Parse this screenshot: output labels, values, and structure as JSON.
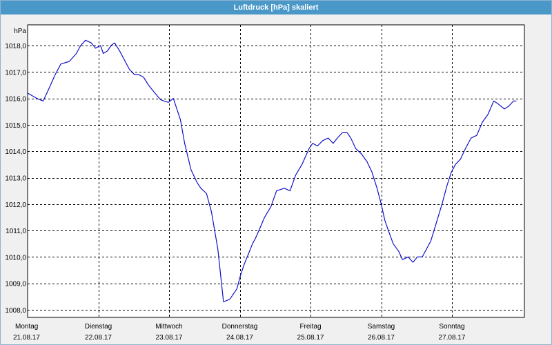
{
  "window": {
    "title": "Luftdruck [hPa] skaliert"
  },
  "chart_data": {
    "type": "line",
    "title": "Luftdruck [hPa] skaliert",
    "ylabel": "hPa",
    "xlabel": "",
    "ylim": [
      1007.8,
      1018.6
    ],
    "xlim": [
      0,
      7
    ],
    "grid": true,
    "line_color": "#1010c8",
    "grid_color": "#000000",
    "background": "#ffffff",
    "yticks": [
      {
        "value": 1008.0,
        "label": "1008,0"
      },
      {
        "value": 1009.0,
        "label": "1009,0"
      },
      {
        "value": 1010.0,
        "label": "1010,0"
      },
      {
        "value": 1011.0,
        "label": "1011,0"
      },
      {
        "value": 1012.0,
        "label": "1012,0"
      },
      {
        "value": 1013.0,
        "label": "1013,0"
      },
      {
        "value": 1014.0,
        "label": "1014,0"
      },
      {
        "value": 1015.0,
        "label": "1015,0"
      },
      {
        "value": 1016.0,
        "label": "1016,0"
      },
      {
        "value": 1017.0,
        "label": "1017,0"
      },
      {
        "value": 1018.0,
        "label": "1018,0"
      }
    ],
    "xticks": [
      {
        "value": 0,
        "day": "Montag",
        "date": "21.08.17"
      },
      {
        "value": 1,
        "day": "Dienstag",
        "date": "22.08.17"
      },
      {
        "value": 2,
        "day": "Mittwoch",
        "date": "23.08.17"
      },
      {
        "value": 3,
        "day": "Donnerstag",
        "date": "24.08.17"
      },
      {
        "value": 4,
        "day": "Freitag",
        "date": "25.08.17"
      },
      {
        "value": 5,
        "day": "Samstag",
        "date": "26.08.17"
      },
      {
        "value": 6,
        "day": "Sonntag",
        "date": "27.08.17"
      }
    ],
    "series": [
      {
        "x": [
          0,
          0.13,
          0.22,
          0.29,
          0.39,
          0.47,
          0.59,
          0.69,
          0.75,
          0.82,
          0.9,
          0.96,
          1.03,
          1.07,
          1.13,
          1.18,
          1.23,
          1.3,
          1.38,
          1.44,
          1.51,
          1.57,
          1.64,
          1.71,
          1.8,
          1.88,
          1.93,
          1.99,
          2.06,
          2.16,
          2.22,
          2.31,
          2.4,
          2.45,
          2.53,
          2.6,
          2.69,
          2.77,
          2.86,
          2.96,
          3.01,
          3.06,
          3.12,
          3.18,
          3.22,
          3.27,
          3.35,
          3.44,
          3.52,
          3.63,
          3.71,
          3.79,
          3.88,
          3.98,
          4.03,
          4.1,
          4.17,
          4.25,
          4.32,
          4.38,
          4.45,
          4.52,
          4.57,
          4.64,
          4.72,
          4.8,
          4.87,
          4.94,
          5.0,
          5.05,
          5.1,
          5.17,
          5.25,
          5.3,
          5.38,
          5.45,
          5.51,
          5.58,
          5.64,
          5.7,
          5.78,
          5.86,
          5.93,
          5.99,
          6.05,
          6.12,
          6.19,
          6.27,
          6.35,
          6.43,
          6.51,
          6.59,
          6.65,
          6.74,
          6.8,
          6.87,
          6.91
        ],
        "y": [
          1016.2,
          1016.0,
          1015.9,
          1016.3,
          1016.9,
          1017.3,
          1017.4,
          1017.7,
          1018.0,
          1018.2,
          1018.1,
          1017.9,
          1018.0,
          1017.7,
          1017.8,
          1018.0,
          1018.1,
          1017.8,
          1017.4,
          1017.1,
          1016.9,
          1016.9,
          1016.8,
          1016.5,
          1016.2,
          1015.95,
          1015.9,
          1015.85,
          1016.0,
          1015.2,
          1014.3,
          1013.3,
          1012.8,
          1012.6,
          1012.4,
          1011.7,
          1010.3,
          1008.3,
          1008.4,
          1008.8,
          1009.3,
          1009.7,
          1010.1,
          1010.5,
          1010.7,
          1011.0,
          1011.5,
          1011.9,
          1012.5,
          1012.6,
          1012.5,
          1013.1,
          1013.5,
          1014.1,
          1014.3,
          1014.2,
          1014.4,
          1014.5,
          1014.3,
          1014.5,
          1014.7,
          1014.7,
          1014.5,
          1014.1,
          1013.9,
          1013.6,
          1013.2,
          1012.6,
          1012.0,
          1011.4,
          1011.0,
          1010.5,
          1010.2,
          1009.9,
          1010.0,
          1009.8,
          1010.0,
          1010.0,
          1010.3,
          1010.6,
          1011.3,
          1012.0,
          1012.7,
          1013.2,
          1013.5,
          1013.7,
          1014.1,
          1014.5,
          1014.6,
          1015.1,
          1015.4,
          1015.9,
          1015.8,
          1015.6,
          1015.7,
          1015.9,
          1015.9
        ]
      }
    ]
  }
}
